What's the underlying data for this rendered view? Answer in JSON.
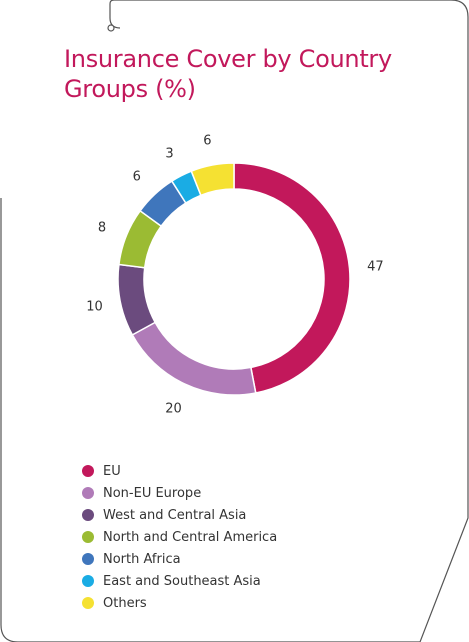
{
  "title": "Insurance Cover by Country Groups (%)",
  "chart_data": {
    "type": "pie",
    "title": "Insurance Cover by Country Groups (%)",
    "categories": [
      "EU",
      "Non-EU Europe",
      "West and Central Asia",
      "North and Central America",
      "North Africa",
      "East and Southeast Asia",
      "Others"
    ],
    "values": [
      47,
      20,
      10,
      8,
      6,
      3,
      6
    ],
    "colors": [
      "#c2185b",
      "#b07bb8",
      "#6b4b7e",
      "#9bbb33",
      "#3f76bc",
      "#1aace4",
      "#f5e132"
    ],
    "donut": true,
    "legend_position": "bottom-left"
  }
}
